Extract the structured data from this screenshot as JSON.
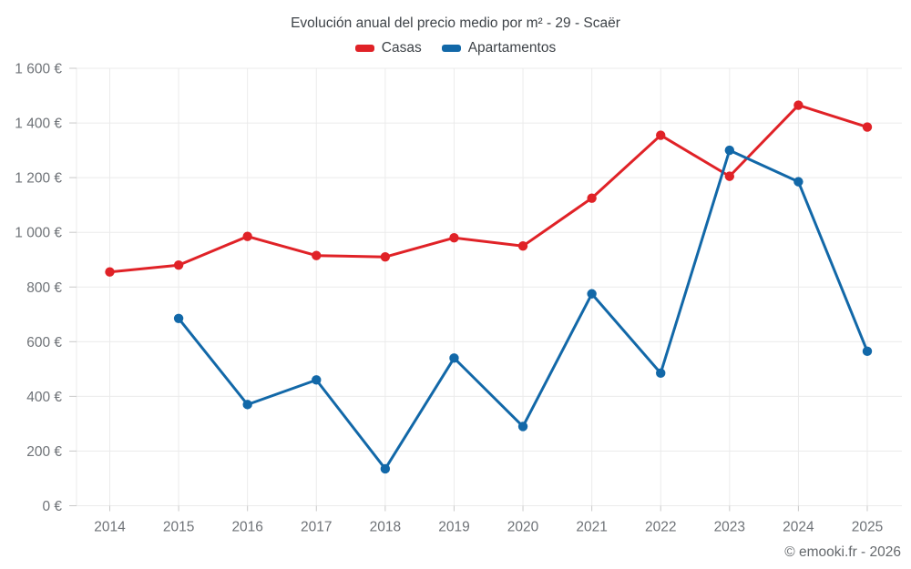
{
  "title": "Evolución anual del precio medio por m² - 29 - Scaër",
  "footer": "© emooki.fr - 2026",
  "colors": {
    "casas": "#e02227",
    "apartamentos": "#1268a8",
    "gridline": "#ebebeb",
    "tick": "#c9c9c9",
    "axis_label": "#6e7277"
  },
  "chart_data": {
    "type": "line",
    "title": "Evolución anual del precio medio por m² - 29 - Scaër",
    "x": [
      2014,
      2015,
      2016,
      2017,
      2018,
      2019,
      2020,
      2021,
      2022,
      2023,
      2024,
      2025
    ],
    "series": [
      {
        "name": "Casas",
        "color": "#e02227",
        "values": [
          855,
          880,
          985,
          915,
          910,
          980,
          950,
          1125,
          1355,
          1205,
          1465,
          1385
        ]
      },
      {
        "name": "Apartamentos",
        "color": "#1268a8",
        "values": [
          null,
          685,
          370,
          460,
          135,
          540,
          290,
          775,
          485,
          1300,
          1185,
          565
        ]
      }
    ],
    "ylim": [
      0,
      1600
    ],
    "yticks": [
      {
        "value": 0,
        "label": "0 €"
      },
      {
        "value": 200,
        "label": "200 €"
      },
      {
        "value": 400,
        "label": "400 €"
      },
      {
        "value": 600,
        "label": "600 €"
      },
      {
        "value": 800,
        "label": "800 €"
      },
      {
        "value": 1000,
        "label": "1 000 €"
      },
      {
        "value": 1200,
        "label": "1 200 €"
      },
      {
        "value": 1400,
        "label": "1 400 €"
      },
      {
        "value": 1600,
        "label": "1 600 €"
      }
    ],
    "grid": true,
    "legend_position": "top"
  }
}
